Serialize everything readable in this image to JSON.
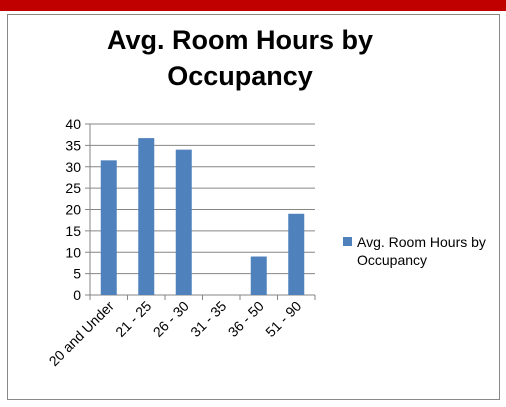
{
  "chart_data": {
    "type": "bar",
    "title": "Avg. Room Hours by Occupancy",
    "categories": [
      "20 and Under",
      "21 - 25",
      "26 - 30",
      "31 - 35",
      "36 - 50",
      "51 - 90"
    ],
    "series": [
      {
        "name": "Avg. Room Hours by Occupancy",
        "color": "#4f81bd",
        "values": [
          31.5,
          36.7,
          34,
          0,
          9,
          19
        ]
      }
    ],
    "ylim": [
      0,
      40
    ],
    "yticks": [
      0,
      5,
      10,
      15,
      20,
      25,
      30,
      35,
      40
    ],
    "grid": true,
    "legend": "right"
  }
}
